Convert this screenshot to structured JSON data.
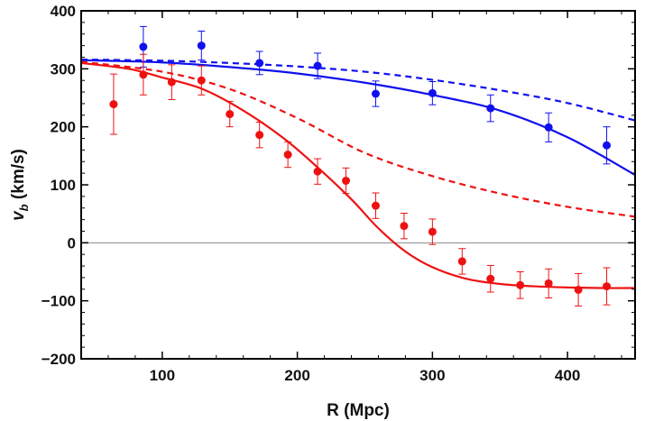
{
  "chart_data": {
    "type": "scatter",
    "title": "",
    "xlabel": "R (Mpc)",
    "ylabel": {
      "main": "v",
      "sub": "b",
      "unit": " (km/s)"
    },
    "xlim": [
      40,
      450
    ],
    "ylim": [
      -200,
      400
    ],
    "xticks": [
      100,
      200,
      300,
      400
    ],
    "yticks": [
      -200,
      -100,
      0,
      100,
      200,
      300,
      400
    ],
    "zero_line": true,
    "grid": false,
    "legend": "none",
    "colors": {
      "blue": "#1010ee",
      "red": "#ee1111",
      "zero_line": "#888888",
      "frame": "#000000"
    },
    "points": [
      {
        "name": "blue",
        "color": "#1010ee",
        "data": [
          {
            "x": 86,
            "y": 338,
            "err": 35
          },
          {
            "x": 129,
            "y": 340,
            "err": 25
          },
          {
            "x": 172,
            "y": 310,
            "err": 20
          },
          {
            "x": 215,
            "y": 305,
            "err": 22
          },
          {
            "x": 258,
            "y": 257,
            "err": 22
          },
          {
            "x": 300,
            "y": 258,
            "err": 20
          },
          {
            "x": 343,
            "y": 232,
            "err": 23
          },
          {
            "x": 386,
            "y": 199,
            "err": 25
          },
          {
            "x": 429,
            "y": 168,
            "err": 32
          }
        ]
      },
      {
        "name": "red",
        "color": "#ee1111",
        "data": [
          {
            "x": 64,
            "y": 239,
            "err": 52
          },
          {
            "x": 86,
            "y": 290,
            "err": 35
          },
          {
            "x": 107,
            "y": 277,
            "err": 30
          },
          {
            "x": 129,
            "y": 280,
            "err": 25
          },
          {
            "x": 150,
            "y": 222,
            "err": 22
          },
          {
            "x": 172,
            "y": 186,
            "err": 22
          },
          {
            "x": 193,
            "y": 152,
            "err": 22
          },
          {
            "x": 215,
            "y": 123,
            "err": 22
          },
          {
            "x": 236,
            "y": 107,
            "err": 22
          },
          {
            "x": 258,
            "y": 64,
            "err": 22
          },
          {
            "x": 279,
            "y": 29,
            "err": 22
          },
          {
            "x": 300,
            "y": 19,
            "err": 22
          },
          {
            "x": 322,
            "y": -32,
            "err": 22
          },
          {
            "x": 343,
            "y": -62,
            "err": 23
          },
          {
            "x": 365,
            "y": -73,
            "err": 23
          },
          {
            "x": 386,
            "y": -70,
            "err": 25
          },
          {
            "x": 408,
            "y": -81,
            "err": 28
          },
          {
            "x": 429,
            "y": -75,
            "err": 32
          }
        ]
      }
    ],
    "curves": [
      {
        "name": "blue-solid",
        "color": "#1010ee",
        "dash": false,
        "x": [
          40,
          100,
          150,
          200,
          250,
          300,
          350,
          400,
          450
        ],
        "y": [
          315,
          311,
          303,
          292,
          276,
          255,
          228,
          182,
          117
        ]
      },
      {
        "name": "blue-dashed",
        "color": "#1010ee",
        "dash": true,
        "x": [
          40,
          100,
          150,
          200,
          250,
          300,
          350,
          400,
          450
        ],
        "y": [
          316,
          314,
          310,
          304,
          295,
          281,
          263,
          241,
          211
        ]
      },
      {
        "name": "red-dashed",
        "color": "#ee1111",
        "dash": true,
        "x": [
          40,
          100,
          150,
          200,
          250,
          300,
          350,
          400,
          450
        ],
        "y": [
          312,
          295,
          265,
          215,
          155,
          115,
          85,
          62,
          45
        ]
      },
      {
        "name": "red-solid",
        "color": "#ee1111",
        "dash": false,
        "x": [
          40,
          75,
          100,
          130,
          160,
          190,
          215,
          240,
          260,
          280,
          300,
          325,
          350,
          375,
          400,
          425,
          450
        ],
        "y": [
          310,
          300,
          285,
          265,
          228,
          180,
          130,
          75,
          25,
          -15,
          -42,
          -62,
          -71,
          -75,
          -77,
          -78,
          -78
        ]
      }
    ]
  }
}
